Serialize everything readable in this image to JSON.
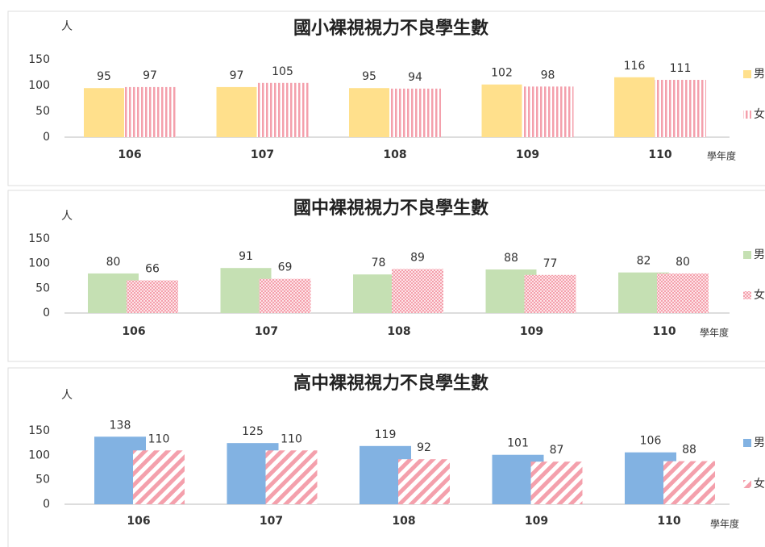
{
  "chart_data": [
    {
      "type": "bar",
      "title": "國小裸視視力不良學生數",
      "y_label": "人",
      "x_label": "學年度",
      "categories": [
        "106",
        "107",
        "108",
        "109",
        "110"
      ],
      "series": [
        {
          "name": "男",
          "color": "#ffe08c",
          "values": [
            95,
            97,
            95,
            102,
            116
          ]
        },
        {
          "name": "女",
          "color": "#f4a0ac",
          "pattern": "vertical-stripes",
          "values": [
            97,
            105,
            94,
            98,
            111
          ]
        }
      ],
      "ylim": [
        0,
        150
      ],
      "yticks": [
        0,
        50,
        100,
        150
      ]
    },
    {
      "type": "bar",
      "title": "國中裸視視力不良學生數",
      "y_label": "人",
      "x_label": "學年度",
      "categories": [
        "106",
        "107",
        "108",
        "109",
        "110"
      ],
      "series": [
        {
          "name": "男",
          "color": "#c5e0b3",
          "values": [
            80,
            91,
            78,
            88,
            82
          ]
        },
        {
          "name": "女",
          "color": "#f4a0ac",
          "pattern": "checker",
          "values": [
            66,
            69,
            89,
            77,
            80
          ]
        }
      ],
      "ylim": [
        0,
        150
      ],
      "yticks": [
        0,
        50,
        100,
        150
      ]
    },
    {
      "type": "bar",
      "title": "高中裸視視力不良學生數",
      "y_label": "人",
      "x_label": "學年度",
      "categories": [
        "106",
        "107",
        "108",
        "109",
        "110"
      ],
      "series": [
        {
          "name": "男",
          "color": "#82b2e2",
          "values": [
            138,
            125,
            119,
            101,
            106
          ]
        },
        {
          "name": "女",
          "color": "#f4a0ac",
          "pattern": "diagonal-stripes",
          "values": [
            110,
            110,
            92,
            87,
            88
          ]
        }
      ],
      "ylim": [
        0,
        150
      ],
      "yticks": [
        0,
        50,
        100,
        150
      ]
    }
  ]
}
